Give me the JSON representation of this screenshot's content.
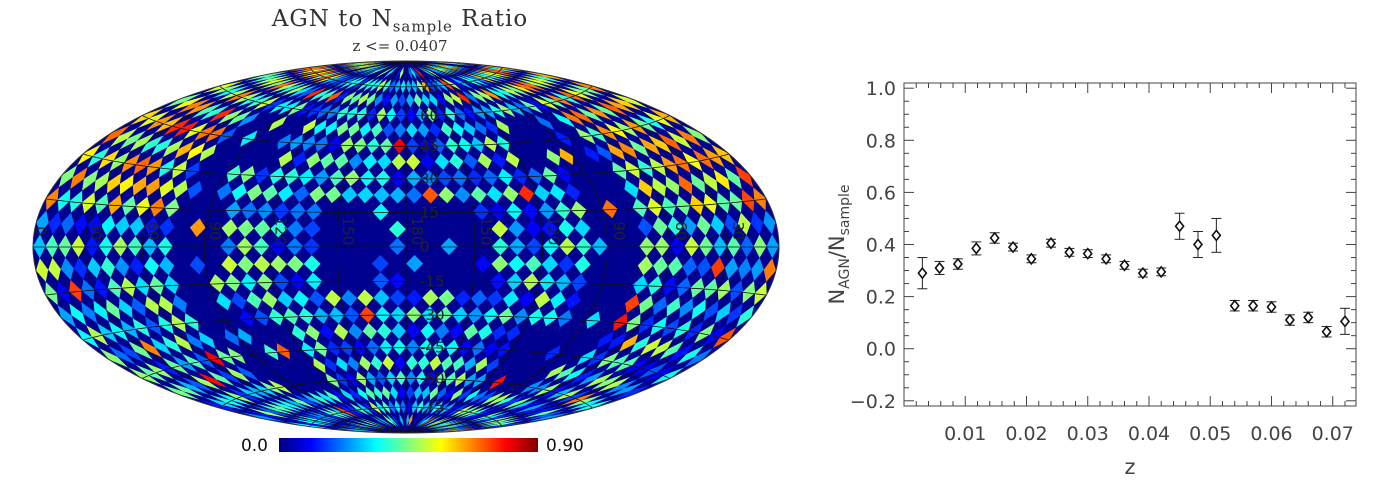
{
  "chart_data": [
    {
      "type": "heatmap",
      "title": "AGN to N",
      "title_sub": "sample",
      "title_suffix": " Ratio",
      "subtitle": "z <= 0.0407",
      "projection": "Hammer-Aitoff (galactic)",
      "colorbar": {
        "min_label": "0.0",
        "max_label": "0.90",
        "min": 0.0,
        "max": 0.9,
        "colormap": "jet",
        "colors": [
          "#00007f",
          "#0000ff",
          "#0080ff",
          "#00ffff",
          "#80ff80",
          "#ffff00",
          "#ff8000",
          "#ff0000",
          "#7f0000"
        ]
      },
      "longitude_labels": [
        "0",
        "30",
        "60",
        "90",
        "120",
        "150",
        "180",
        "150",
        "120",
        "90",
        "60",
        "30"
      ],
      "latitude_labels": [
        "75",
        "60",
        "45",
        "30",
        "15",
        "0",
        "-15",
        "-30",
        "-45",
        "-60",
        "-75"
      ],
      "no_data_color": "#00008f"
    },
    {
      "type": "scatter",
      "xlabel": "z",
      "ylabel_main": "N",
      "ylabel_sub1": "AGN",
      "ylabel_sep": "/N",
      "ylabel_sub2": "sample",
      "xlim": [
        0.0,
        0.0738
      ],
      "ylim": [
        -0.22,
        1.02
      ],
      "x_ticks": [
        0.01,
        0.02,
        0.03,
        0.04,
        0.05,
        0.06,
        0.07
      ],
      "x_tick_labels": [
        "0.01",
        "0.02",
        "0.03",
        "0.04",
        "0.05",
        "0.06",
        "0.07"
      ],
      "y_ticks": [
        -0.2,
        0.0,
        0.2,
        0.4,
        0.6,
        0.8,
        1.0
      ],
      "y_tick_labels": [
        "−0.2",
        "0.0",
        "0.2",
        "0.4",
        "0.6",
        "0.8",
        "1.0"
      ],
      "marker": "diamond",
      "grid": false,
      "points": [
        {
          "x": 0.003,
          "y": 0.29,
          "err": 0.06
        },
        {
          "x": 0.0058,
          "y": 0.31,
          "err": 0.025
        },
        {
          "x": 0.0088,
          "y": 0.325,
          "err": 0.02
        },
        {
          "x": 0.0118,
          "y": 0.385,
          "err": 0.025
        },
        {
          "x": 0.0148,
          "y": 0.425,
          "err": 0.02
        },
        {
          "x": 0.0178,
          "y": 0.39,
          "err": 0.015
        },
        {
          "x": 0.0208,
          "y": 0.345,
          "err": 0.015
        },
        {
          "x": 0.024,
          "y": 0.405,
          "err": 0.015
        },
        {
          "x": 0.027,
          "y": 0.37,
          "err": 0.015
        },
        {
          "x": 0.03,
          "y": 0.365,
          "err": 0.015
        },
        {
          "x": 0.033,
          "y": 0.345,
          "err": 0.015
        },
        {
          "x": 0.036,
          "y": 0.32,
          "err": 0.015
        },
        {
          "x": 0.039,
          "y": 0.29,
          "err": 0.015
        },
        {
          "x": 0.042,
          "y": 0.295,
          "err": 0.015
        },
        {
          "x": 0.045,
          "y": 0.47,
          "err": 0.05
        },
        {
          "x": 0.048,
          "y": 0.4,
          "err": 0.05
        },
        {
          "x": 0.051,
          "y": 0.435,
          "err": 0.065
        },
        {
          "x": 0.054,
          "y": 0.165,
          "err": 0.02
        },
        {
          "x": 0.057,
          "y": 0.165,
          "err": 0.02
        },
        {
          "x": 0.06,
          "y": 0.16,
          "err": 0.02
        },
        {
          "x": 0.063,
          "y": 0.11,
          "err": 0.02
        },
        {
          "x": 0.066,
          "y": 0.12,
          "err": 0.02
        },
        {
          "x": 0.069,
          "y": 0.065,
          "err": 0.02
        },
        {
          "x": 0.072,
          "y": 0.105,
          "err": 0.05
        }
      ]
    }
  ]
}
